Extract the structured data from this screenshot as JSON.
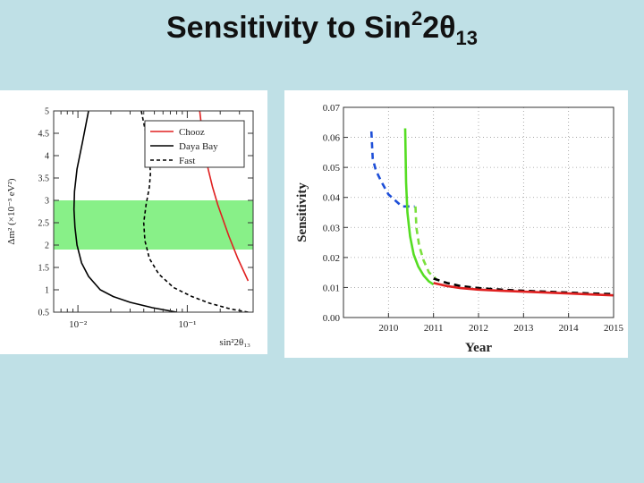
{
  "title": {
    "main": "Sensitivity to Sin",
    "sup": "2",
    "middle": "2θ",
    "sub": "13"
  },
  "chart_data": [
    {
      "type": "line",
      "name": "exclusion-contours",
      "xscale": "log",
      "xlim": [
        0.006,
        0.4
      ],
      "ylim": [
        0.5,
        5
      ],
      "xlabel": "sin²2θ₁₃",
      "ylabel": "Δm² (×10⁻³ eV²)",
      "x_tick_labels": [
        {
          "value": 0.01,
          "label": "10⁻²"
        },
        {
          "value": 0.1,
          "label": "10⁻¹"
        }
      ],
      "y_ticks": [
        0.5,
        1,
        1.5,
        2,
        2.5,
        3,
        3.5,
        4,
        4.5,
        5
      ],
      "y_tick_labels": [
        "0.5",
        "1",
        "1.5",
        "2",
        "2.5",
        "3",
        "3.5",
        "4",
        "4.5",
        "5"
      ],
      "band": {
        "y0": 1.9,
        "y1": 3.0,
        "color": "#88f088"
      },
      "legend": {
        "position": "top-right"
      },
      "series": [
        {
          "name": "Chooz",
          "color": "#e02020",
          "dash": "solid",
          "x": [
            0.13,
            0.14,
            0.155,
            0.17,
            0.19,
            0.21,
            0.24,
            0.29,
            0.36
          ],
          "y": [
            5.0,
            4.3,
            3.7,
            3.3,
            2.9,
            2.6,
            2.2,
            1.7,
            1.2
          ]
        },
        {
          "name": "Daya Bay",
          "color": "#000000",
          "dash": "solid",
          "x": [
            0.0125,
            0.011,
            0.0098,
            0.0093,
            0.0092,
            0.0094,
            0.0098,
            0.0108,
            0.0125,
            0.016,
            0.021,
            0.03,
            0.048,
            0.08
          ],
          "y": [
            5.0,
            4.3,
            3.7,
            3.2,
            2.8,
            2.4,
            2.0,
            1.6,
            1.3,
            1.0,
            0.85,
            0.72,
            0.6,
            0.5
          ]
        },
        {
          "name": "Fast",
          "color": "#000000",
          "dash": "dashed",
          "x": [
            0.038,
            0.041,
            0.045,
            0.046,
            0.045,
            0.042,
            0.04,
            0.041,
            0.045,
            0.055,
            0.075,
            0.11,
            0.16,
            0.25,
            0.36
          ],
          "y": [
            5.0,
            4.6,
            4.0,
            3.6,
            3.3,
            2.9,
            2.5,
            2.1,
            1.7,
            1.35,
            1.05,
            0.85,
            0.7,
            0.57,
            0.5
          ]
        }
      ]
    },
    {
      "type": "line",
      "name": "sensitivity-vs-year",
      "xlim": [
        2009,
        2015
      ],
      "ylim": [
        0,
        0.07
      ],
      "xlabel": "Year",
      "ylabel": "Sensitivity",
      "x_ticks": [
        2010,
        2011,
        2012,
        2013,
        2014,
        2015
      ],
      "x_tick_labels": [
        "2010",
        "2011",
        "2012",
        "2013",
        "2014",
        "2015"
      ],
      "y_ticks": [
        0,
        0.01,
        0.02,
        0.03,
        0.04,
        0.05,
        0.06,
        0.07
      ],
      "y_tick_labels": [
        "0.00",
        "0.01",
        "0.02",
        "0.03",
        "0.04",
        "0.05",
        "0.06",
        "0.07"
      ],
      "series": [
        {
          "name": "blue-dashed",
          "color": "#1e4fd8",
          "dash": "dashed",
          "x": [
            2009.62,
            2009.65,
            2009.72,
            2009.85,
            2010.0,
            2010.15,
            2010.3,
            2010.58
          ],
          "y": [
            0.062,
            0.053,
            0.049,
            0.045,
            0.041,
            0.039,
            0.037,
            0.037
          ]
        },
        {
          "name": "green-dashed",
          "color": "#7ae03c",
          "dash": "dashed",
          "x": [
            2010.6,
            2010.62,
            2010.68,
            2010.78,
            2010.9,
            2011.05
          ],
          "y": [
            0.037,
            0.03,
            0.024,
            0.019,
            0.015,
            0.013
          ]
        },
        {
          "name": "green-solid",
          "color": "#55dd22",
          "dash": "solid",
          "x": [
            2010.37,
            2010.39,
            2010.42,
            2010.48,
            2010.56,
            2010.66,
            2010.78,
            2010.9,
            2011.0
          ],
          "y": [
            0.063,
            0.045,
            0.035,
            0.027,
            0.021,
            0.017,
            0.014,
            0.012,
            0.011
          ]
        },
        {
          "name": "black-dashed",
          "color": "#000000",
          "dash": "dashed",
          "x": [
            2011.0,
            2011.3,
            2011.6,
            2012.0,
            2012.5,
            2013.0,
            2013.5,
            2014.0,
            2014.5,
            2015.0
          ],
          "y": [
            0.013,
            0.0115,
            0.0105,
            0.0098,
            0.0093,
            0.0089,
            0.0086,
            0.0083,
            0.008,
            0.0078
          ]
        },
        {
          "name": "red-solid",
          "color": "#e02020",
          "dash": "solid",
          "x": [
            2011.0,
            2011.3,
            2011.6,
            2012.0,
            2012.5,
            2013.0,
            2013.5,
            2014.0,
            2014.5,
            2015.0
          ],
          "y": [
            0.0115,
            0.0105,
            0.0098,
            0.0093,
            0.0089,
            0.0086,
            0.0083,
            0.008,
            0.0077,
            0.0074
          ]
        }
      ]
    }
  ]
}
